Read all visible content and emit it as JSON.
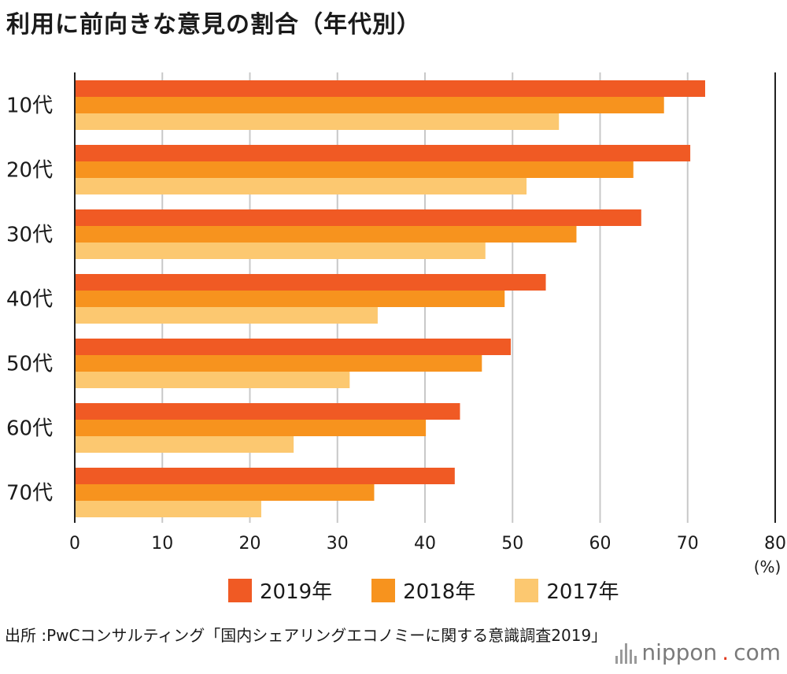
{
  "title": "利用に前向きな意見の割合（年代別）",
  "chart_data": {
    "type": "bar",
    "orientation": "horizontal",
    "title": "利用に前向きな意見の割合（年代別）",
    "categories": [
      "10代",
      "20代",
      "30代",
      "40代",
      "50代",
      "60代",
      "70代"
    ],
    "series": [
      {
        "name": "2019年",
        "color": "#f05a24",
        "values": [
          72,
          70.3,
          64.7,
          53.8,
          49.8,
          44.0,
          43.4
        ]
      },
      {
        "name": "2018年",
        "color": "#f7931e",
        "values": [
          67.3,
          63.8,
          57.3,
          49.1,
          46.5,
          40.1,
          34.2
        ]
      },
      {
        "name": "2017年",
        "color": "#fcc870",
        "values": [
          55.3,
          51.6,
          46.9,
          34.6,
          31.4,
          25.0,
          21.3
        ]
      }
    ],
    "xlim": [
      0,
      80
    ],
    "xticks": [
      "0",
      "10",
      "20",
      "30",
      "40",
      "50",
      "60",
      "70",
      "80"
    ],
    "xunit": "(%)",
    "grid": true
  },
  "source": "出所 :PwCコンサルティング「国内シェアリングエコノミーに関する意識調査2019」",
  "brand": {
    "name": "nippon",
    "dot": ".",
    "tld": "com"
  }
}
